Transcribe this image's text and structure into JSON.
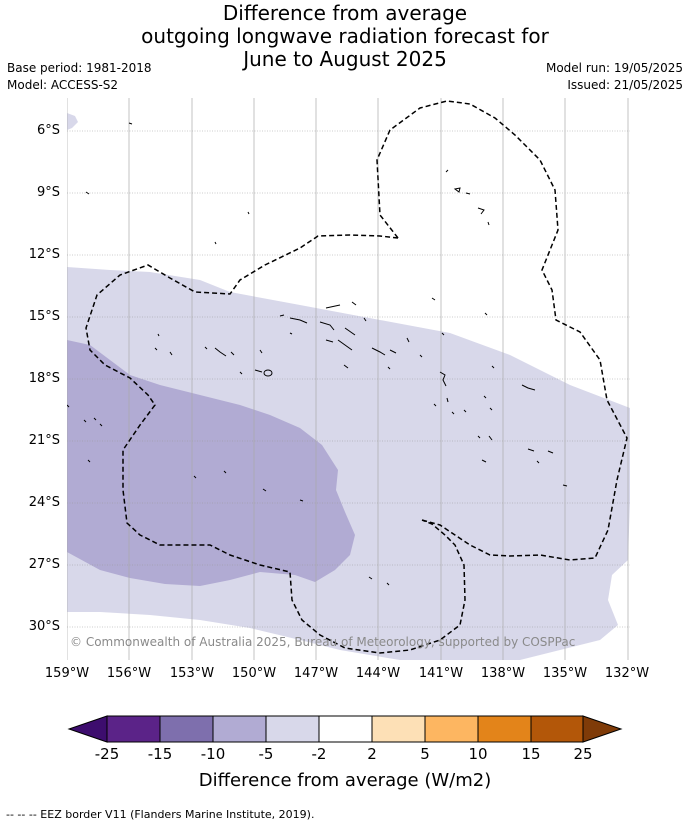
{
  "title": {
    "line1": "Difference from average",
    "line2": "outgoing longwave radiation forecast for",
    "line3": "June to August 2025"
  },
  "meta": {
    "base_period": "Base period: 1981-2018",
    "model": "Model: ACCESS-S2",
    "model_run": "Model run: 19/05/2025",
    "issued": "Issued: 21/05/2025"
  },
  "copyright": "© Commonwealth of Australia 2025, Bureau of Meteorology, supported by COSPPac",
  "latitude_labels": [
    "6°S",
    "9°S",
    "12°S",
    "15°S",
    "18°S",
    "21°S",
    "24°S",
    "27°S",
    "30°S"
  ],
  "longitude_labels": [
    "159°W",
    "156°W",
    "153°W",
    "150°W",
    "147°W",
    "144°W",
    "141°W",
    "138°W",
    "135°W",
    "132°W"
  ],
  "colorbar": {
    "title": "Difference from average (W/m2)",
    "ticks": [
      "-25",
      "-15",
      "-10",
      "-5",
      "-2",
      "2",
      "5",
      "10",
      "15",
      "25"
    ],
    "colors": {
      "under": "#3d0d6e",
      "b1": "#5b2388",
      "b2": "#7e6fad",
      "b3": "#b1abd3",
      "b4": "#d8d8ea",
      "b5": "#ffffff",
      "b6": "#fde0b6",
      "b7": "#fdb661",
      "b8": "#e3841a",
      "b9": "#b35709",
      "over": "#7f3b08"
    }
  },
  "footer": "--  --  -- EEZ border V11 (Flanders Marine Institute, 2019)."
}
